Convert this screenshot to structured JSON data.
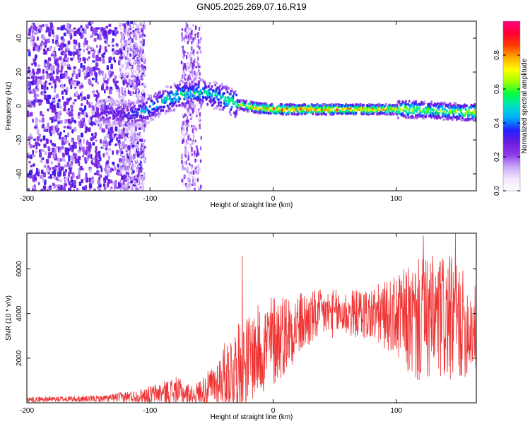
{
  "title": "GN05.2025.269.07.16.R19",
  "chart_data": [
    {
      "type": "heatmap",
      "name": "spectrogram",
      "xlabel": "Height of straight line (km)",
      "ylabel": "Frequency (Hz)",
      "xlim": [
        -200,
        165
      ],
      "ylim": [
        -50,
        50
      ],
      "xticks": [
        -200,
        -100,
        0,
        100
      ],
      "yticks": [
        -40,
        -20,
        0,
        20,
        40
      ],
      "colorbar": {
        "label": "Normalized spectral amplitude",
        "range": [
          0,
          1
        ],
        "ticks": [
          "0.0",
          "0.2",
          "0.4",
          "0.6",
          "0.8"
        ],
        "tick_values": [
          0.0,
          0.2,
          0.4,
          0.6,
          0.8
        ],
        "colors": [
          "#ffffff",
          "#f2e6ff",
          "#c9a6f7",
          "#8c3ae8",
          "#6a1be0",
          "#2020ff",
          "#00aaff",
          "#00e0c0",
          "#00ff40",
          "#a0ff00",
          "#ffff00",
          "#ffaa00",
          "#ff3a00",
          "#ff0030",
          "#ff0080"
        ]
      },
      "ridge": [
        {
          "x": -140,
          "y": -4,
          "amp": 0.28
        },
        {
          "x": -120,
          "y": -5,
          "amp": 0.35
        },
        {
          "x": -105,
          "y": -3,
          "amp": 0.45
        },
        {
          "x": -90,
          "y": 3,
          "amp": 0.5
        },
        {
          "x": -75,
          "y": 7,
          "amp": 0.52
        },
        {
          "x": -60,
          "y": 8,
          "amp": 0.5
        },
        {
          "x": -45,
          "y": 6,
          "amp": 0.5
        },
        {
          "x": -30,
          "y": 1,
          "amp": 0.65
        },
        {
          "x": -15,
          "y": -1,
          "amp": 0.8
        },
        {
          "x": 0,
          "y": -2,
          "amp": 0.85
        },
        {
          "x": 20,
          "y": -2,
          "amp": 0.85
        },
        {
          "x": 50,
          "y": -2,
          "amp": 0.85
        },
        {
          "x": 80,
          "y": -2,
          "amp": 0.8
        },
        {
          "x": 110,
          "y": -2,
          "amp": 0.7
        },
        {
          "x": 140,
          "y": -3,
          "amp": 0.6
        },
        {
          "x": 165,
          "y": -4,
          "amp": 0.75
        }
      ]
    },
    {
      "type": "line",
      "name": "snr",
      "xlabel": "Height of straight line (km)",
      "ylabel": "SNR (10 * v/v)",
      "xlim": [
        -200,
        165
      ],
      "ylim": [
        0,
        7600
      ],
      "xticks": [
        -200,
        -100,
        0,
        100
      ],
      "yticks": [
        2000,
        4000,
        6000
      ],
      "color": "#ee3333",
      "envelope": [
        {
          "x": -200,
          "mean": 150,
          "spread": 120
        },
        {
          "x": -140,
          "mean": 180,
          "spread": 150
        },
        {
          "x": -110,
          "mean": 300,
          "spread": 300
        },
        {
          "x": -90,
          "mean": 450,
          "spread": 500
        },
        {
          "x": -80,
          "mean": 500,
          "spread": 700
        },
        {
          "x": -65,
          "mean": 350,
          "spread": 400
        },
        {
          "x": -50,
          "mean": 700,
          "spread": 900
        },
        {
          "x": -35,
          "mean": 1400,
          "spread": 1800
        },
        {
          "x": -20,
          "mean": 2000,
          "spread": 2000
        },
        {
          "x": 0,
          "mean": 2800,
          "spread": 2200
        },
        {
          "x": 20,
          "mean": 3500,
          "spread": 1500
        },
        {
          "x": 40,
          "mean": 4000,
          "spread": 1100
        },
        {
          "x": 70,
          "mean": 4000,
          "spread": 1100
        },
        {
          "x": 95,
          "mean": 3900,
          "spread": 1600
        },
        {
          "x": 115,
          "mean": 3600,
          "spread": 2800
        },
        {
          "x": 140,
          "mean": 3800,
          "spread": 3000
        },
        {
          "x": 165,
          "mean": 3300,
          "spread": 2000
        }
      ],
      "peaks": [
        {
          "x": -25,
          "y": 6600
        },
        {
          "x": 122,
          "y": 7500
        },
        {
          "x": 148,
          "y": 7600
        }
      ]
    }
  ]
}
